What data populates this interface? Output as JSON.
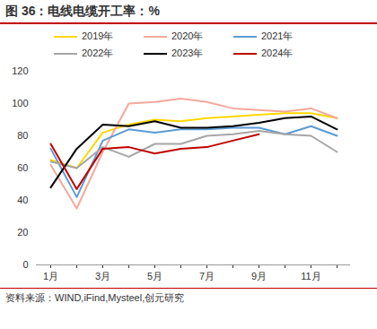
{
  "chart_data": {
    "type": "line",
    "title": "图 36：电线电缆开工率：%",
    "source": "资料来源：WIND,iFind,Mysteel,创元研究",
    "categories": [
      "1月",
      null,
      "3月",
      null,
      "5月",
      null,
      "7月",
      null,
      "9月",
      null,
      "11月",
      null
    ],
    "series": [
      {
        "name": "2019年",
        "color": "#ffd700",
        "values": [
          65,
          60,
          82,
          87,
          90,
          89,
          91,
          92,
          93,
          94,
          94,
          91
        ]
      },
      {
        "name": "2020年",
        "color": "#f4a99b",
        "values": [
          62,
          35,
          70,
          100,
          101,
          103,
          101,
          97,
          96,
          95,
          97,
          91
        ]
      },
      {
        "name": "2021年",
        "color": "#5b9bd5",
        "values": [
          72,
          42,
          77,
          84,
          82,
          84,
          84,
          85,
          85,
          81,
          86,
          80
        ]
      },
      {
        "name": "2022年",
        "color": "#a6a6a6",
        "values": [
          64,
          60,
          73,
          67,
          75,
          75,
          80,
          81,
          83,
          81,
          80,
          70
        ]
      },
      {
        "name": "2023年",
        "color": "#000000",
        "values": [
          48,
          72,
          87,
          86,
          89,
          85,
          85,
          86,
          88,
          91,
          92,
          84
        ]
      },
      {
        "name": "2024年",
        "color": "#c00000",
        "values": [
          75,
          47,
          72,
          73,
          69,
          72,
          73,
          77,
          81,
          null,
          null,
          null
        ]
      }
    ],
    "ylim": [
      0,
      120
    ],
    "yticks": [
      0,
      20,
      40,
      60,
      80,
      100,
      120
    ],
    "grid": false,
    "legend": "top"
  }
}
